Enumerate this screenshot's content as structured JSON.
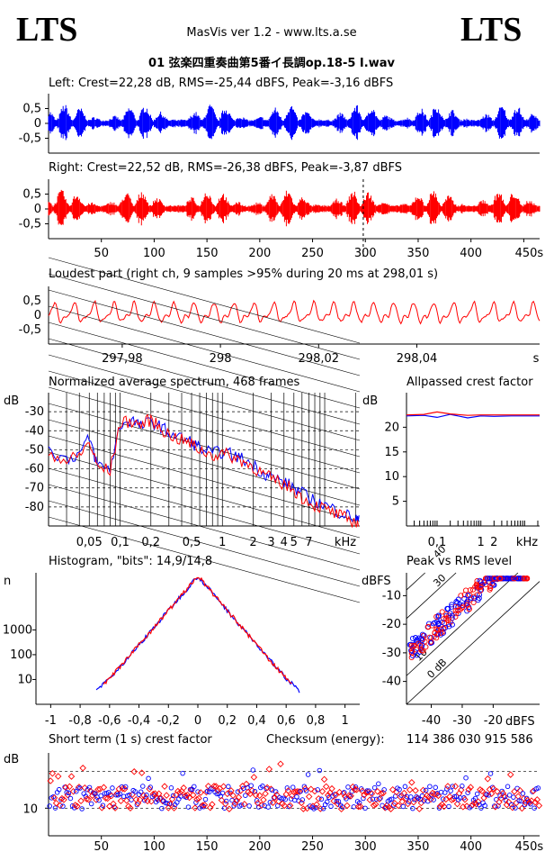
{
  "header": {
    "logo_left": "LTS",
    "logo_right": "LTS",
    "app_title": "MasVis ver 1.2 - www.lts.a.se",
    "file_title": "01 弦楽四重奏曲第5番イ長調op.18-5 I.wav"
  },
  "colors": {
    "left": "#0000ff",
    "right": "#ff0000",
    "axis": "#000000",
    "grid": "#000000"
  },
  "chart_data": [
    {
      "type": "area",
      "name": "left-waveform",
      "title": "Left: Crest=22,28 dB, RMS=-25,44 dBFS, Peak=-3,16 dBFS",
      "yticks": [
        "0,5",
        "0",
        "-0,5"
      ],
      "ylim": [
        -1,
        1
      ],
      "xlim": [
        0,
        465
      ],
      "series": [
        {
          "name": "Left",
          "peak": 0.69,
          "rms": 0.053
        }
      ]
    },
    {
      "type": "area",
      "name": "right-waveform",
      "title": "Right: Crest=22,52 dB, RMS=-26,38 dBFS, Peak=-3,87 dBFS",
      "yticks": [
        "0,5",
        "0",
        "-0,5"
      ],
      "ylim": [
        -1,
        1
      ],
      "xlim": [
        0,
        465
      ],
      "xticks": [
        "50",
        "100",
        "150",
        "200",
        "250",
        "300",
        "350",
        "400",
        "450s"
      ],
      "marker_x": 298.01,
      "series": [
        {
          "name": "Right",
          "peak": 0.64,
          "rms": 0.048
        }
      ]
    },
    {
      "type": "line",
      "name": "loudest-part",
      "title": "Loudest part (right ch, 9 samples >95% during 20 ms at 298,01 s)",
      "yticks": [
        "0,5",
        "0",
        "-0,5"
      ],
      "ylim": [
        -1,
        1
      ],
      "xlim": [
        297.965,
        298.065
      ],
      "xticks": [
        "297,98",
        "298",
        "298,02",
        "298,04",
        "s"
      ]
    },
    {
      "type": "line",
      "name": "spectrum",
      "title": "Normalized average spectrum, 468 frames",
      "ylabel": "dB",
      "yticks": [
        "-30",
        "-40",
        "-50",
        "-60",
        "-70",
        "-80"
      ],
      "ylim": [
        -90,
        -20
      ],
      "xlim": [
        0.02,
        22
      ],
      "xscale": "log",
      "xticks": [
        "0,05",
        "0,1",
        "0,2",
        "0,5",
        "1",
        "2",
        "3",
        "4",
        "5",
        "7",
        "kHz"
      ],
      "x": [
        0.02,
        0.03,
        0.04,
        0.05,
        0.06,
        0.08,
        0.1,
        0.13,
        0.16,
        0.2,
        0.25,
        0.3,
        0.4,
        0.5,
        0.6,
        0.8,
        1,
        1.3,
        1.6,
        2,
        2.5,
        3,
        4,
        5,
        6,
        8,
        10,
        13,
        16,
        20,
        22
      ],
      "series": [
        {
          "name": "Left",
          "values": [
            -50,
            -55,
            -52,
            -44,
            -58,
            -60,
            -37,
            -34,
            -38,
            -35,
            -38,
            -41,
            -44,
            -46,
            -49,
            -52,
            -51,
            -53,
            -55,
            -58,
            -62,
            -64,
            -67,
            -70,
            -73,
            -77,
            -79,
            -82,
            -84,
            -86,
            -88
          ]
        },
        {
          "name": "Right",
          "values": [
            -51,
            -56,
            -53,
            -46,
            -59,
            -61,
            -36,
            -35,
            -37,
            -34,
            -39,
            -42,
            -45,
            -47,
            -50,
            -53,
            -52,
            -54,
            -56,
            -59,
            -63,
            -65,
            -68,
            -71,
            -75,
            -79,
            -81,
            -84,
            -86,
            -88,
            -89
          ]
        }
      ]
    },
    {
      "type": "line",
      "name": "allpassed-crest",
      "title": "Allpassed crest factor",
      "ylabel": "dB",
      "yticks": [
        "20",
        "15",
        "10",
        "5"
      ],
      "ylim": [
        0,
        27
      ],
      "xlim": [
        0.02,
        22
      ],
      "xscale": "log",
      "xticks": [
        "0,1",
        "1",
        "2",
        "kHz"
      ],
      "x": [
        0.02,
        0.05,
        0.1,
        0.2,
        0.5,
        1,
        2,
        5,
        10,
        22
      ],
      "series": [
        {
          "name": "Left",
          "values": [
            22.3,
            22.4,
            22.0,
            22.6,
            21.9,
            22.3,
            22.2,
            22.3,
            22.3,
            22.3
          ]
        },
        {
          "name": "Right",
          "values": [
            22.5,
            22.6,
            23.1,
            22.7,
            22.4,
            22.5,
            22.5,
            22.5,
            22.5,
            22.5
          ]
        }
      ]
    },
    {
      "type": "line",
      "name": "histogram",
      "title": "Histogram, \"bits\": 14,9/14,8",
      "ylabel": "n",
      "yscale": "log",
      "yticks": [
        "1000",
        "100",
        "10"
      ],
      "ylim": [
        1,
        200000
      ],
      "xlim": [
        -1.1,
        1.1
      ],
      "xticks": [
        "-1",
        "-0,8",
        "-0,6",
        "-0,4",
        "-0,2",
        "0",
        "0,2",
        "0,4",
        "0,6",
        "0,8",
        "1"
      ],
      "series": [
        {
          "name": "Left",
          "extent": 0.69
        },
        {
          "name": "Right",
          "extent": 0.64
        }
      ]
    },
    {
      "type": "scatter",
      "name": "peak-vs-rms",
      "title": "Peak vs RMS level",
      "ylabel": "dBFS",
      "xlabel": "dBFS",
      "yticks": [
        "-10",
        "-20",
        "-30",
        "-40"
      ],
      "xticks": [
        "-40",
        "-30",
        "-20"
      ],
      "xlim": [
        -48,
        -5
      ],
      "ylim": [
        -48,
        -2
      ],
      "diagonals": [
        "40",
        "30",
        "10",
        "0 dB"
      ]
    },
    {
      "type": "scatter",
      "name": "short-term-crest",
      "title": "Short term (1 s) crest factor",
      "ylabel": "dB",
      "yticks": [
        "10"
      ],
      "ylim": [
        4,
        22
      ],
      "xlim": [
        0,
        465
      ],
      "xticks": [
        "50",
        "100",
        "150",
        "200",
        "250",
        "300",
        "350",
        "400",
        "450s"
      ]
    }
  ],
  "checksum": {
    "label": "Checksum (energy):",
    "value": "114 386 030 915 586"
  }
}
